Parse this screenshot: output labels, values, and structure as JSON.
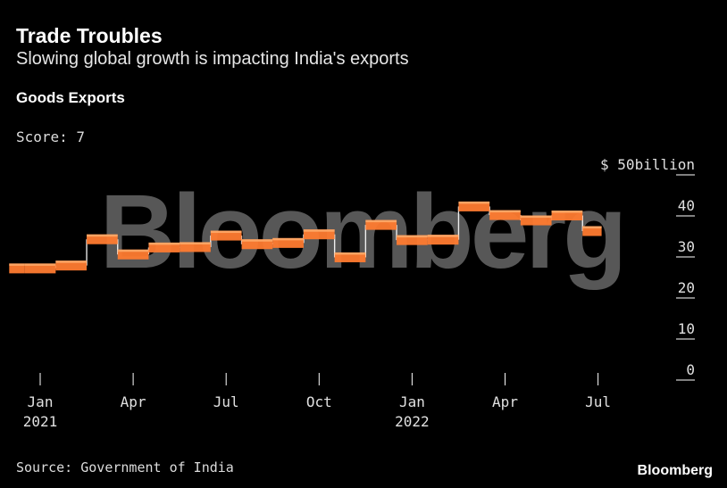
{
  "header": {
    "title": "Trade Troubles",
    "subtitle": "Slowing global growth is impacting India's exports"
  },
  "chart_heading": "Goods Exports",
  "score_label": "Score: 7",
  "footer": {
    "source": "Source: Government of India",
    "brand": "Bloomberg"
  },
  "watermark": "Bloomberg",
  "colors": {
    "series": "#ff7b30",
    "series_highlight": "#ffb070",
    "connector": "#ffffff",
    "axis_text": "#e0e0e0",
    "tick": "#ffffff",
    "watermark": "#6a6a6a"
  },
  "chart_data": {
    "type": "line",
    "style": "step",
    "ylim": [
      0,
      50
    ],
    "y_unit_label": "$ 50billion",
    "y_ticks": [
      {
        "value": 50,
        "label": "$ 50billion"
      },
      {
        "value": 40,
        "label": "40"
      },
      {
        "value": 30,
        "label": "30"
      },
      {
        "value": 20,
        "label": "20"
      },
      {
        "value": 10,
        "label": "10"
      },
      {
        "value": 0,
        "label": "0"
      }
    ],
    "x_ticks": [
      {
        "month": 0,
        "label": "Jan",
        "year": "2021"
      },
      {
        "month": 3,
        "label": "Apr",
        "year": ""
      },
      {
        "month": 6,
        "label": "Jul",
        "year": ""
      },
      {
        "month": 9,
        "label": "Oct",
        "year": ""
      },
      {
        "month": 12,
        "label": "Jan",
        "year": "2022"
      },
      {
        "month": 15,
        "label": "Apr",
        "year": ""
      },
      {
        "month": 18,
        "label": "Jul",
        "year": ""
      }
    ],
    "series": [
      {
        "x": [
          "2020-12",
          "2021-01",
          "2021-02",
          "2021-03",
          "2021-04",
          "2021-05",
          "2021-06",
          "2021-07",
          "2021-08",
          "2021-09",
          "2021-10",
          "2021-11",
          "2021-12",
          "2022-01",
          "2022-02",
          "2022-03",
          "2022-04",
          "2022-05",
          "2022-06",
          "2022-07"
        ],
        "values": [
          27.2,
          27.2,
          27.9,
          34.3,
          30.6,
          32.3,
          32.4,
          35.2,
          33.1,
          33.4,
          35.5,
          29.9,
          37.8,
          34.1,
          34.2,
          42.3,
          40.2,
          38.9,
          40.1,
          36.3
        ]
      }
    ]
  }
}
